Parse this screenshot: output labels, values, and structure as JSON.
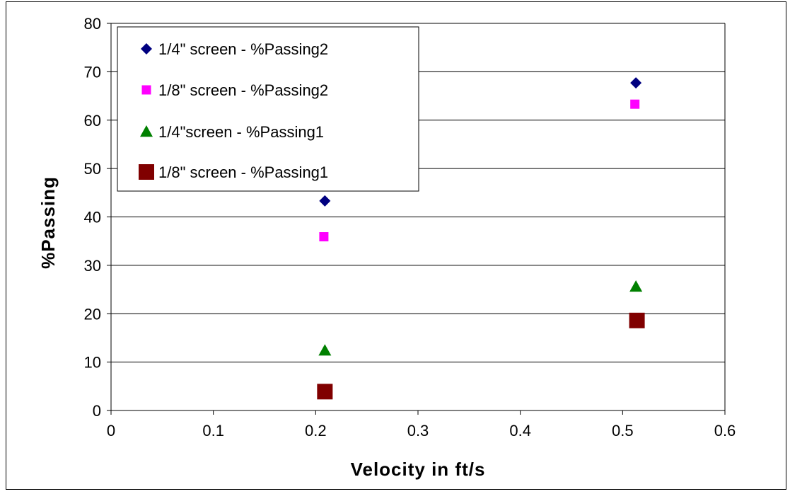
{
  "chart_data": {
    "type": "scatter",
    "xlabel": "Velocity in ft/s",
    "ylabel": "%Passing",
    "xlim": [
      0,
      0.6
    ],
    "ylim": [
      0,
      80
    ],
    "x_ticks": [
      "0",
      "0.1",
      "0.2",
      "0.3",
      "0.4",
      "0.5",
      "0.6"
    ],
    "y_ticks": [
      "0",
      "10",
      "20",
      "30",
      "40",
      "50",
      "60",
      "70",
      "80"
    ],
    "grid": "horizontal",
    "legend_position": "top-left",
    "series": [
      {
        "name": "1/4\" screen - %Passing2",
        "marker": "diamond",
        "color": "#000080",
        "x": [
          0.209,
          0.513
        ],
        "y": [
          43.3,
          67.7
        ]
      },
      {
        "name": "1/8\" screen - %Passing2",
        "marker": "square-small",
        "color": "#FF00FF",
        "x": [
          0.208,
          0.512
        ],
        "y": [
          35.9,
          63.3
        ]
      },
      {
        "name": "1/4\"screen - %Passing1",
        "marker": "triangle",
        "color": "#008000",
        "x": [
          0.209,
          0.513
        ],
        "y": [
          12.4,
          25.6
        ]
      },
      {
        "name": "1/8\" screen - %Passing1",
        "marker": "square-large",
        "color": "#800000",
        "x": [
          0.209,
          0.514
        ],
        "y": [
          3.9,
          18.6
        ]
      }
    ]
  }
}
